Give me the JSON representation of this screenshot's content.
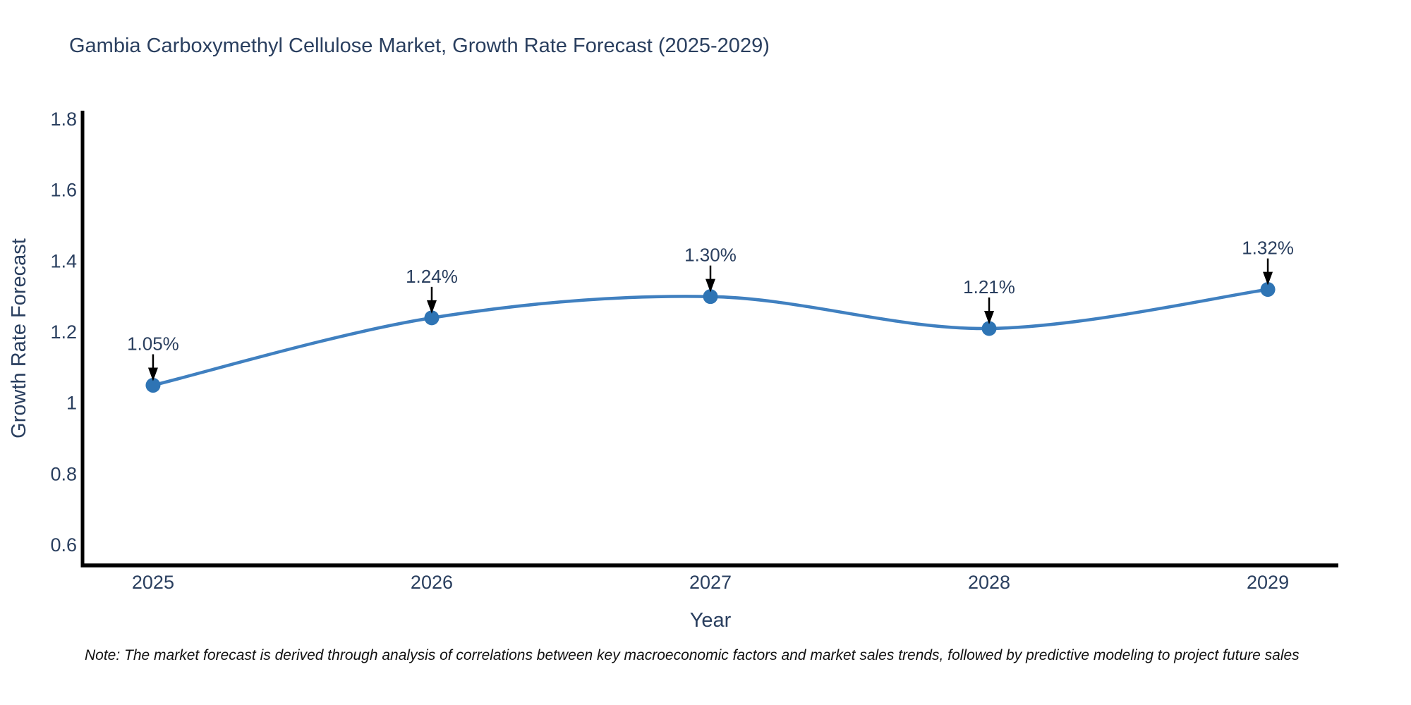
{
  "page": {
    "title": "Gambia Carboxymethyl Cellulose Market, Growth Rate Forecast (2025-2029)",
    "note": "Note: The market forecast is derived through analysis of correlations between key macroeconomic factors and market sales trends, followed by predictive modeling to project future sales"
  },
  "chart_data": {
    "type": "line",
    "line_shape": "spline",
    "title": "Gambia Carboxymethyl Cellulose Market, Growth Rate Forecast (2025-2029)",
    "xlabel": "Year",
    "ylabel": "Growth Rate Forecast",
    "x": [
      2025,
      2026,
      2027,
      2028,
      2029
    ],
    "values": [
      1.05,
      1.24,
      1.3,
      1.21,
      1.32
    ],
    "point_labels": [
      "1.05%",
      "1.24%",
      "1.30%",
      "1.21%",
      "1.32%"
    ],
    "x_tick_labels": [
      "2025",
      "2026",
      "2027",
      "2028",
      "2029"
    ],
    "x_tick_values": [
      2025,
      2026,
      2027,
      2028,
      2029
    ],
    "y_tick_labels": [
      "0.6",
      "0.8",
      "1",
      "1.2",
      "1.4",
      "1.6",
      "1.8"
    ],
    "y_tick_values": [
      0.6,
      0.8,
      1.0,
      1.2,
      1.4,
      1.6,
      1.8
    ],
    "xlim": [
      2024.747,
      2029.253
    ],
    "ylim": [
      0.5424,
      1.8238
    ],
    "grid": false,
    "legend_position": "none",
    "colors": {
      "line": "#4080c0",
      "marker": "#2e74b4",
      "axis_line": "#000000",
      "text": "#2a3f5f",
      "annotation_arrow": "#000000"
    }
  }
}
